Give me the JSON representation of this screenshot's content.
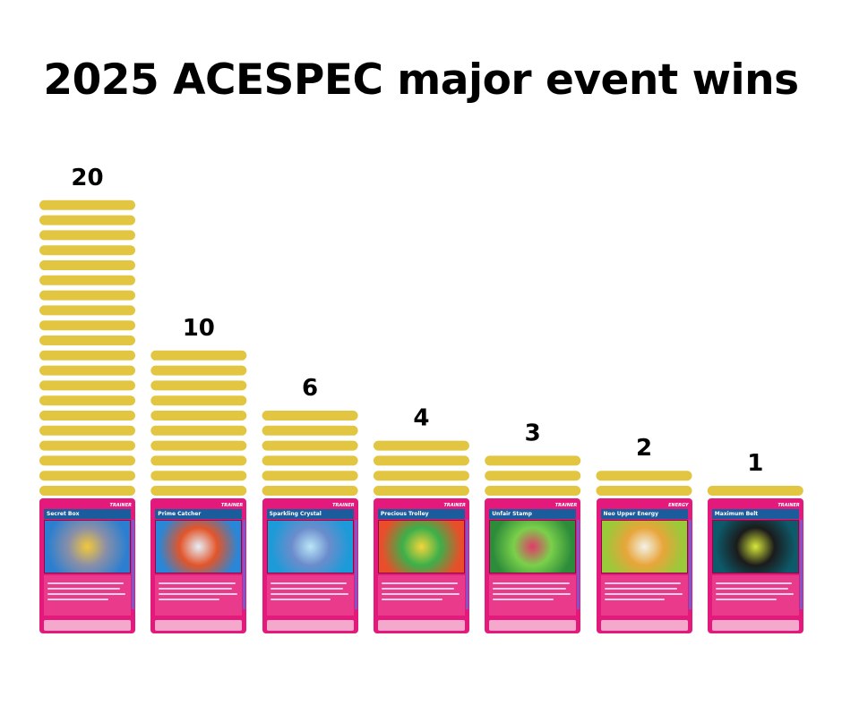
{
  "title": "2025 ACESPEC major event wins",
  "colors": {
    "bar": "#e2c541",
    "card": "#e4197c",
    "text": "#000000"
  },
  "chart_data": {
    "type": "bar",
    "title": "2025 ACESPEC major event wins",
    "categories": [
      "Secret Box",
      "Prime Catcher",
      "Sparkling Crystal",
      "Precious Trolley",
      "Unfair Stamp",
      "Neo Upper Energy",
      "Maximum Belt"
    ],
    "values": [
      20,
      10,
      6,
      4,
      3,
      2,
      1
    ],
    "xlabel": "",
    "ylabel": "",
    "ylim": [
      0,
      20
    ],
    "grid": false,
    "legend": "none"
  },
  "cards": [
    {
      "name": "Secret Box",
      "kind": "TRAINER",
      "art": [
        "#2c7fd0",
        "#f3c83a",
        "#8a8fa8"
      ]
    },
    {
      "name": "Prime Catcher",
      "kind": "TRAINER",
      "art": [
        "#2a86d6",
        "#e6eef8",
        "#e2552a"
      ]
    },
    {
      "name": "Sparkling Crystal",
      "kind": "TRAINER",
      "art": [
        "#1b9bd8",
        "#b9e6f7",
        "#6b8ccc"
      ]
    },
    {
      "name": "Precious Trolley",
      "kind": "TRAINER",
      "art": [
        "#e94e2a",
        "#f5d43a",
        "#3cb04a"
      ]
    },
    {
      "name": "Unfair Stamp",
      "kind": "TRAINER",
      "art": [
        "#2d8c3a",
        "#e23a6a",
        "#7ad04a"
      ]
    },
    {
      "name": "Neo Upper Energy",
      "kind": "ENERGY",
      "art": [
        "#9ac93a",
        "#f2f2e8",
        "#e8a53a"
      ]
    },
    {
      "name": "Maximum Belt",
      "kind": "TRAINER",
      "art": [
        "#0d5a6a",
        "#d7e83a",
        "#1b1b1b"
      ]
    }
  ]
}
